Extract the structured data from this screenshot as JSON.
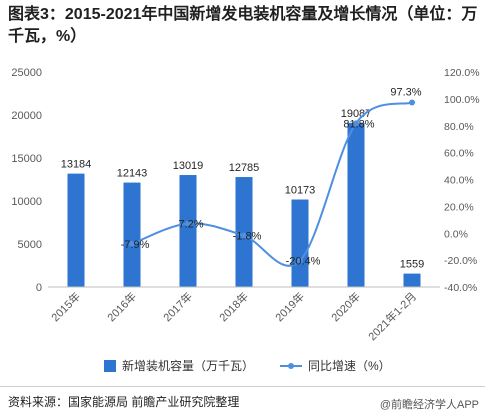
{
  "header": {
    "title": "图表3：2015-2021年中国新增发电装机容量及增长情况（单位：万千瓦，%）"
  },
  "colors": {
    "bar": "#2e75d1",
    "line": "#4f8fe0",
    "axis": "#bfbfbf",
    "text": "#595959"
  },
  "chart_data": {
    "type": "bar",
    "categories": [
      "2015年",
      "2016年",
      "2017年",
      "2018年",
      "2019年",
      "2020年",
      "2021年1-2月"
    ],
    "series": [
      {
        "name": "新增装机容量（万千瓦）",
        "type": "bar",
        "axis": "left",
        "values": [
          13184,
          12143,
          13019,
          12785,
          10173,
          19087,
          1559
        ],
        "labels": [
          "13184",
          "12143",
          "13019",
          "12785",
          "10173",
          "19087",
          "1559"
        ]
      },
      {
        "name": "同比增速（%）",
        "type": "line",
        "axis": "right",
        "values": [
          null,
          -7.9,
          7.2,
          -1.8,
          -20.4,
          81.8,
          97.3
        ],
        "labels": [
          "",
          "-7.9%",
          "7.2%",
          "-1.8%",
          "-20.4%",
          "81.8%",
          "97.3%"
        ]
      }
    ],
    "y_left": {
      "min": 0,
      "max": 25000,
      "ticks": [
        0,
        5000,
        10000,
        15000,
        20000,
        25000
      ],
      "tick_labels": [
        "0",
        "5000",
        "10000",
        "15000",
        "20000",
        "25000"
      ]
    },
    "y_right": {
      "min": -40,
      "max": 120,
      "ticks": [
        -40,
        -20,
        0,
        20,
        40,
        60,
        80,
        100,
        120
      ],
      "tick_labels": [
        "-40.0%",
        "-20.0%",
        "0.0%",
        "20.0%",
        "40.0%",
        "60.0%",
        "80.0%",
        "100.0%",
        "120.0%"
      ]
    },
    "grid": false,
    "legend_position": "bottom"
  },
  "legend": {
    "bar_label": "新增装机容量（万千瓦）",
    "line_label": "同比增速（%）"
  },
  "footer": {
    "source": "资料来源：国家能源局 前瞻产业研究院整理",
    "app": "@前瞻经济学人APP"
  }
}
